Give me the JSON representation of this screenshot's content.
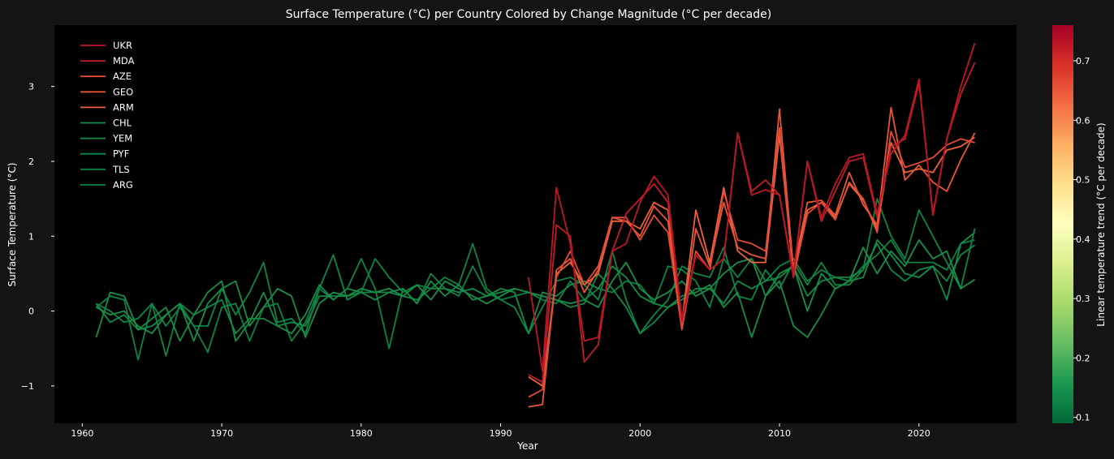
{
  "chart_data": {
    "type": "line",
    "title": "Surface Temperature (°C) per Country Colored by Change Magnitude (°C per decade)",
    "xlabel": "Year",
    "ylabel": "Surface Temperature (°C)",
    "xlim": [
      1958,
      2027
    ],
    "ylim": [
      -1.5,
      3.82
    ],
    "xticks": [
      "1960",
      "1970",
      "1980",
      "1990",
      "2000",
      "2010",
      "2020"
    ],
    "yticks": [
      "−1",
      "0",
      "1",
      "2",
      "3"
    ],
    "background": "#000000",
    "figure_background": "#141414",
    "grid": false,
    "legend_position": "top-left",
    "colorbar": {
      "label": "Linear temperature trend (°C per decade)",
      "range": [
        0.09,
        0.76
      ],
      "ticks": [
        "0.1",
        "0.2",
        "0.3",
        "0.4",
        "0.5",
        "0.6",
        "0.7"
      ],
      "colormap": "RdYlGn_r",
      "colormap_stops": [
        "#006837",
        "#1a9850",
        "#66bd63",
        "#a6d96a",
        "#d9ef8b",
        "#ffffbf",
        "#fee08b",
        "#fdae61",
        "#f46d43",
        "#d73027",
        "#a50026"
      ]
    },
    "series": [
      {
        "name": "UKR",
        "trend": 0.72,
        "color": "#bd1726",
        "x_start": 1992,
        "values": [
          0.45,
          -0.8,
          1.65,
          0.9,
          -0.4,
          -0.35,
          0.8,
          0.9,
          1.45,
          1.8,
          1.55,
          -0.1,
          0.75,
          0.55,
          0.7,
          2.38,
          1.55,
          1.62,
          1.55,
          0.5,
          2.0,
          1.25,
          1.7,
          2.05,
          2.1,
          1.3,
          2.1,
          2.35,
          3.1,
          1.28,
          2.3,
          3.0,
          3.58
        ]
      },
      {
        "name": "MDA",
        "trend": 0.7,
        "color": "#c21c27",
        "x_start": 1992,
        "values": [
          -0.85,
          -0.95,
          1.15,
          1.0,
          -0.68,
          -0.45,
          0.8,
          1.3,
          1.5,
          1.7,
          1.45,
          -0.15,
          0.75,
          0.55,
          0.7,
          2.38,
          1.6,
          1.75,
          1.55,
          0.45,
          2.0,
          1.2,
          1.6,
          2.0,
          2.05,
          1.25,
          2.2,
          2.3,
          3.05,
          1.3,
          2.3,
          2.9,
          3.32
        ]
      },
      {
        "name": "AZE",
        "trend": 0.64,
        "color": "#e34c34",
        "x_start": 1992,
        "values": [
          -1.15,
          -1.05,
          0.45,
          0.8,
          0.35,
          0.6,
          1.25,
          1.25,
          0.95,
          1.28,
          1.05,
          -0.25,
          0.8,
          0.55,
          1.6,
          0.95,
          0.9,
          0.8,
          2.45,
          0.45,
          1.3,
          1.45,
          1.22,
          1.72,
          1.5,
          1.05,
          2.4,
          1.92,
          1.98,
          2.05,
          2.22,
          2.3,
          2.25
        ]
      },
      {
        "name": "GEO",
        "trend": 0.63,
        "color": "#e95637",
        "x_start": 1992,
        "values": [
          -1.28,
          -1.25,
          0.55,
          0.7,
          0.25,
          0.55,
          1.25,
          1.2,
          1.0,
          1.4,
          1.2,
          -0.2,
          1.1,
          0.6,
          1.45,
          0.85,
          0.75,
          0.7,
          2.7,
          0.55,
          1.45,
          1.48,
          1.28,
          1.85,
          1.42,
          1.15,
          2.72,
          1.75,
          1.95,
          1.72,
          1.6,
          2.02,
          2.38
        ]
      },
      {
        "name": "ARM",
        "trend": 0.62,
        "color": "#ee6240",
        "x_start": 1992,
        "values": [
          -0.88,
          -1.0,
          0.5,
          0.65,
          0.35,
          0.5,
          1.2,
          1.2,
          1.1,
          1.45,
          1.35,
          -0.15,
          1.35,
          0.65,
          1.65,
          0.8,
          0.65,
          0.65,
          2.35,
          0.5,
          1.35,
          1.45,
          1.25,
          1.7,
          1.48,
          1.1,
          2.25,
          1.85,
          1.9,
          1.85,
          2.15,
          2.2,
          2.32
        ]
      },
      {
        "name": "CHL",
        "trend": 0.16,
        "color": "#178f49",
        "x_start": 1961,
        "values": [
          0.05,
          -0.05,
          0.0,
          -0.2,
          -0.3,
          -0.05,
          0.1,
          -0.4,
          0.1,
          0.3,
          0.4,
          -0.2,
          0.05,
          0.3,
          0.2,
          -0.35,
          0.1,
          0.25,
          0.2,
          0.3,
          0.25,
          0.3,
          0.2,
          0.35,
          0.15,
          0.4,
          0.3,
          0.2,
          0.1,
          0.2,
          0.3,
          0.25,
          0.2,
          0.15,
          0.1,
          0.15,
          0.05,
          0.4,
          0.65,
          0.3,
          0.15,
          0.25,
          0.4,
          0.2,
          0.3,
          0.5,
          0.65,
          0.7,
          0.2,
          0.5,
          0.6,
          0.0,
          0.5,
          0.3,
          0.4,
          0.85,
          0.5,
          0.8,
          0.6,
          0.95,
          0.7,
          0.8,
          0.3,
          0.42
        ]
      },
      {
        "name": "YEM",
        "trend": 0.15,
        "color": "#148d47",
        "x_start": 1961,
        "values": [
          -0.35,
          0.25,
          0.2,
          -0.25,
          -0.1,
          0.05,
          -0.4,
          -0.05,
          0.25,
          0.4,
          -0.4,
          -0.15,
          0.25,
          -0.2,
          -0.3,
          -0.05,
          0.35,
          0.15,
          0.3,
          0.25,
          0.15,
          0.25,
          0.3,
          0.1,
          0.4,
          0.2,
          0.35,
          0.15,
          0.2,
          0.3,
          0.25,
          -0.3,
          0.25,
          0.2,
          0.35,
          0.4,
          0.3,
          0.6,
          0.45,
          0.2,
          0.1,
          0.05,
          0.2,
          0.25,
          0.35,
          0.05,
          0.25,
          -0.35,
          0.2,
          0.4,
          -0.2,
          -0.35,
          -0.05,
          0.3,
          0.4,
          0.45,
          0.95,
          0.75,
          0.5,
          0.45,
          0.6,
          0.15,
          0.9,
          1.05
        ]
      },
      {
        "name": "PYF",
        "trend": 0.13,
        "color": "#0f8946",
        "x_start": 1961,
        "values": [
          0.1,
          -0.15,
          -0.05,
          -0.25,
          -0.2,
          -0.05,
          0.1,
          -0.05,
          0.05,
          0.15,
          -0.3,
          -0.1,
          -0.1,
          -0.2,
          -0.15,
          -0.2,
          0.2,
          0.2,
          0.2,
          0.25,
          0.25,
          0.25,
          0.2,
          0.15,
          0.3,
          0.3,
          0.25,
          0.3,
          0.2,
          0.25,
          0.3,
          0.25,
          0.2,
          0.15,
          0.05,
          0.1,
          0.5,
          0.3,
          0.05,
          -0.3,
          -0.15,
          0.05,
          0.15,
          0.3,
          0.3,
          0.1,
          0.4,
          0.3,
          0.4,
          0.45,
          0.6,
          0.2,
          0.4,
          0.45,
          0.45,
          0.55,
          0.9,
          0.55,
          0.4,
          0.55,
          0.6,
          0.4,
          0.75,
          0.88
        ]
      },
      {
        "name": "TLS",
        "trend": 0.11,
        "color": "#0b8644",
        "x_start": 1961,
        "values": [
          0.1,
          0.0,
          -0.15,
          -0.1,
          0.1,
          -0.2,
          0.05,
          -0.2,
          -0.2,
          0.3,
          -0.05,
          0.25,
          0.65,
          -0.15,
          -0.1,
          -0.3,
          0.3,
          0.75,
          0.15,
          0.25,
          0.7,
          0.45,
          0.25,
          0.35,
          0.3,
          0.45,
          0.35,
          0.9,
          0.3,
          0.15,
          0.05,
          -0.3,
          0.05,
          0.4,
          0.45,
          0.35,
          0.15,
          0.8,
          0.15,
          -0.3,
          -0.05,
          0.15,
          0.6,
          0.5,
          0.45,
          0.85,
          0.2,
          0.15,
          0.55,
          0.3,
          0.65,
          0.35,
          0.65,
          0.35,
          0.35,
          0.55,
          1.5,
          1.0,
          0.7,
          1.35,
          1.0,
          0.65,
          0.3,
          1.1
        ]
      },
      {
        "name": "ARG",
        "trend": 0.1,
        "color": "#098444",
        "x_start": 1961,
        "values": [
          0.05,
          0.2,
          0.15,
          -0.65,
          0.1,
          -0.6,
          0.1,
          -0.2,
          -0.55,
          0.05,
          0.1,
          -0.4,
          0.05,
          0.1,
          -0.4,
          -0.15,
          0.3,
          0.15,
          0.3,
          0.7,
          0.3,
          -0.5,
          0.3,
          0.1,
          0.5,
          0.3,
          0.2,
          0.6,
          0.25,
          0.15,
          0.2,
          0.25,
          0.15,
          0.1,
          0.4,
          0.15,
          0.3,
          0.25,
          0.4,
          0.35,
          0.1,
          0.6,
          0.55,
          0.4,
          0.05,
          0.7,
          0.45,
          0.7,
          0.4,
          0.6,
          0.7,
          0.4,
          0.55,
          0.45,
          0.4,
          0.6,
          0.75,
          0.95,
          0.65,
          0.65,
          0.65,
          0.55,
          0.9,
          0.95
        ]
      }
    ]
  }
}
